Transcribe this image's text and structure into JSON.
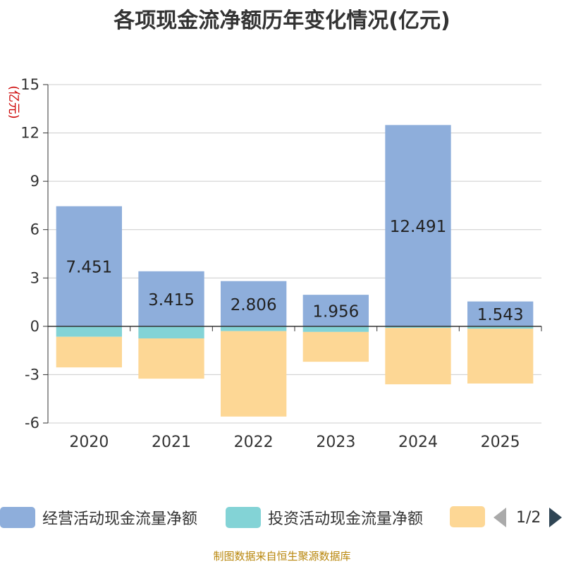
{
  "title": "各项现金流净额历年变化情况(亿元)",
  "source": "制图数据来自恒生聚源数据库",
  "colors": {
    "operating": "#8eaedb",
    "investing": "#83d3d6",
    "financing": "#fdd795",
    "axis": "#333333",
    "grid": "#cccccc",
    "unit_label": "#cc0000"
  },
  "legend": {
    "items": [
      {
        "label": "经营活动现金流量净额",
        "series": "operating"
      },
      {
        "label": "投资活动现金流量净额",
        "series": "investing"
      },
      {
        "label": "",
        "series": "financing"
      }
    ],
    "page_text": "1/2",
    "prev_icon": "triangle-left-icon",
    "next_icon": "triangle-right-icon"
  },
  "chart_data": {
    "type": "bar",
    "stacked": true,
    "title": "各项现金流净额历年变化情况(亿元)",
    "ylabel": "(亿元)",
    "xlabel": "",
    "categories": [
      "2020",
      "2021",
      "2022",
      "2023",
      "2024",
      "2025"
    ],
    "ylim": [
      -6,
      15
    ],
    "yticks": [
      -6,
      -3,
      0,
      3,
      6,
      9,
      12,
      15
    ],
    "grid": true,
    "legend_position": "bottom",
    "series": [
      {
        "name": "经营活动现金流量净额",
        "key": "operating",
        "values": [
          7.451,
          3.415,
          2.806,
          1.956,
          12.491,
          1.543
        ],
        "show_labels": true
      },
      {
        "name": "投资活动现金流量净额",
        "key": "investing",
        "values": [
          -0.65,
          -0.75,
          -0.3,
          -0.35,
          -0.1,
          -0.15
        ],
        "show_labels": false
      },
      {
        "name": "",
        "key": "financing",
        "values": [
          -1.9,
          -2.5,
          -5.3,
          -1.85,
          -3.5,
          -3.4
        ],
        "show_labels": false
      }
    ]
  }
}
